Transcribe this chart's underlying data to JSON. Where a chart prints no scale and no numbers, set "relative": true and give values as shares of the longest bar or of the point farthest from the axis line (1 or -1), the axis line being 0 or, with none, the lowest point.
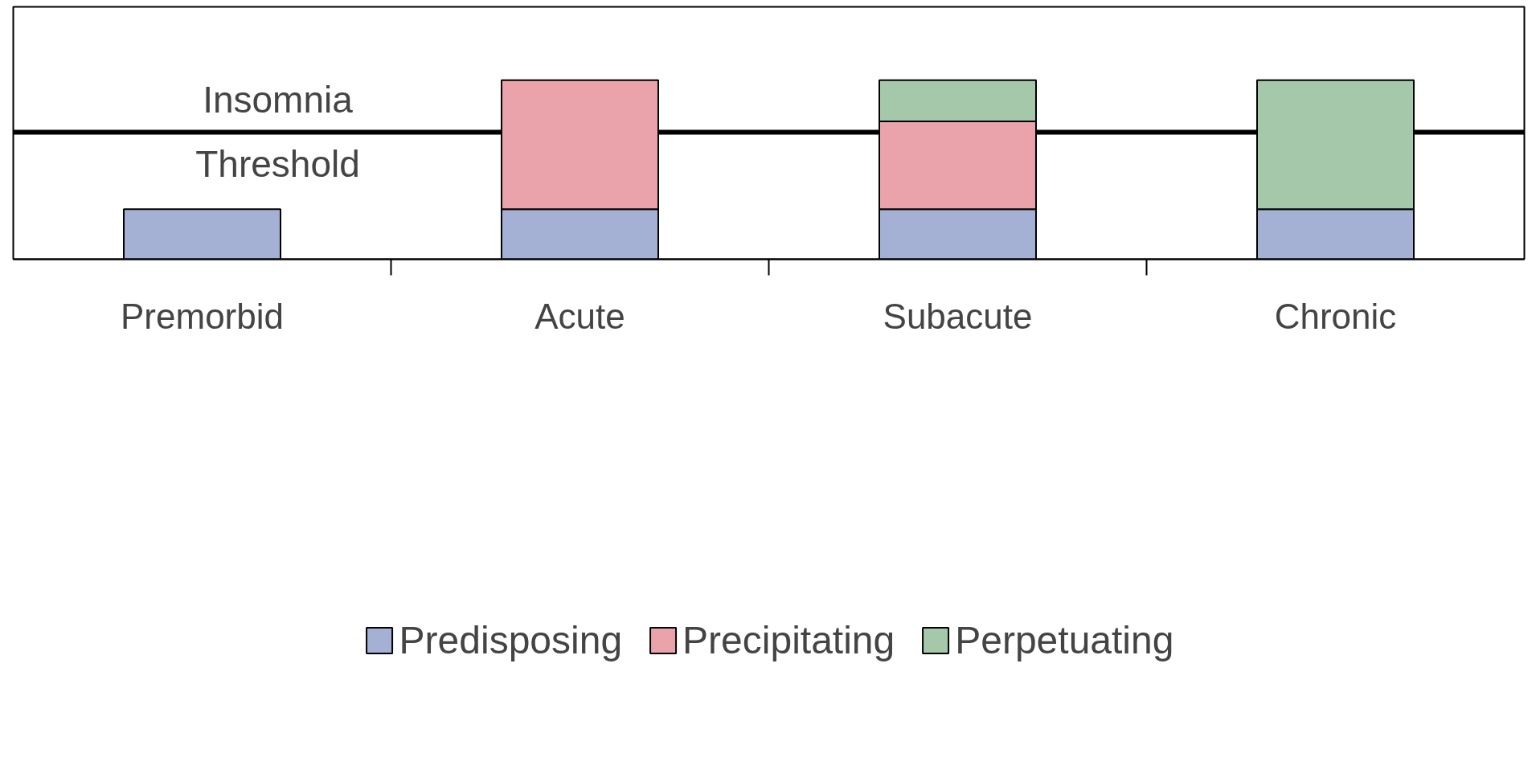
{
  "chart_data": {
    "type": "bar",
    "stacked": true,
    "relative": true,
    "categories": [
      "Premorbid",
      "Acute",
      "Subacute",
      "Chronic"
    ],
    "series": [
      {
        "name": "Predisposing",
        "color": "#a4b1d4",
        "values": [
          0.28,
          0.28,
          0.28,
          0.28
        ]
      },
      {
        "name": "Precipitating",
        "color": "#eaa3aa",
        "values": [
          null,
          0.72,
          0.49,
          null
        ]
      },
      {
        "name": "Perpetuating",
        "color": "#a5c8ab",
        "values": [
          null,
          null,
          0.23,
          0.72
        ]
      }
    ],
    "ref_lines": [
      {
        "axis": "y",
        "value": 0.71,
        "label": "Insomnia\nThreshold",
        "color": "#000000"
      }
    ],
    "legend": "bottom",
    "grid": false
  }
}
